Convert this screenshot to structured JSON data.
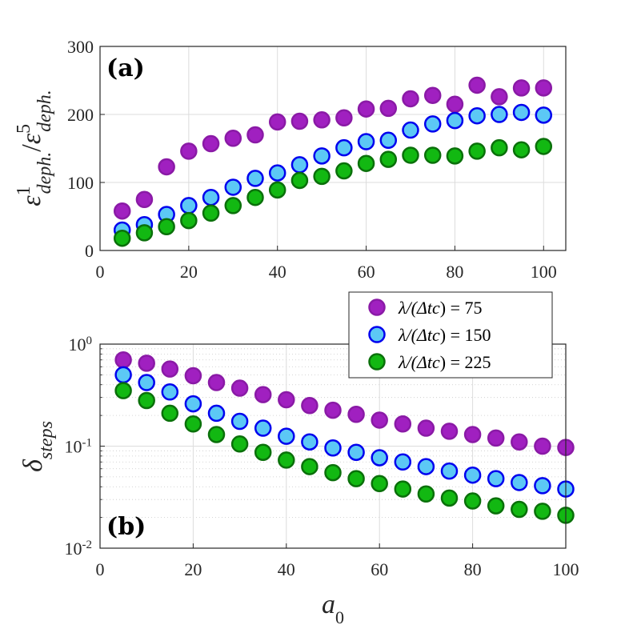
{
  "chart_data": [
    {
      "panel": "(a)",
      "type": "scatter",
      "ylabel_main": "ε",
      "ylabel_sup1": "1",
      "ylabel_sub1": "deph.",
      "ylabel_sep": "/",
      "ylabel_sup2": "5",
      "ylabel_sub2": "deph.",
      "xlim": [
        0,
        105
      ],
      "ylim": [
        0,
        300
      ],
      "xticks": [
        0,
        20,
        40,
        60,
        80,
        100
      ],
      "yticks": [
        0,
        100,
        200,
        300
      ],
      "x": [
        5,
        10,
        15,
        20,
        25,
        30,
        35,
        40,
        45,
        50,
        55,
        60,
        65,
        70,
        75,
        80,
        85,
        90,
        95,
        100
      ],
      "series": [
        {
          "name": "λ/(Δtc) = 75",
          "fill": "#a020c0",
          "edge": "#8a1aa6",
          "values": [
            58,
            75,
            123,
            146,
            157,
            165,
            170,
            189,
            190,
            192,
            195,
            208,
            209,
            223,
            228,
            215,
            243,
            226,
            239,
            239
          ]
        },
        {
          "name": "λ/(Δtc) = 150",
          "fill": "#5cc8f5",
          "edge": "#0000ee",
          "values": [
            30,
            38,
            53,
            66,
            78,
            93,
            106,
            114,
            126,
            139,
            151,
            160,
            162,
            177,
            186,
            191,
            198,
            200,
            203,
            199
          ]
        },
        {
          "name": "λ/(Δtc) = 225",
          "fill": "#12b812",
          "edge": "#0a700a",
          "values": [
            18,
            26,
            35,
            44,
            55,
            66,
            78,
            89,
            103,
            109,
            117,
            128,
            134,
            140,
            140,
            139,
            146,
            151,
            148,
            153
          ]
        }
      ]
    },
    {
      "panel": "(b)",
      "type": "scatter",
      "yscale": "log",
      "ylabel_main": "δ",
      "ylabel_sub": "steps",
      "xlabel_main": "a",
      "xlabel_sub": "0",
      "xlim": [
        0,
        100
      ],
      "ylim": [
        0.01,
        1
      ],
      "xticks": [
        0,
        20,
        40,
        60,
        80,
        100
      ],
      "yticks": [
        {
          "value": 1,
          "base": "10",
          "exp": "0"
        },
        {
          "value": 0.1,
          "base": "10",
          "exp": "-1"
        },
        {
          "value": 0.01,
          "base": "10",
          "exp": "-2"
        }
      ],
      "x": [
        5,
        10,
        15,
        20,
        25,
        30,
        35,
        40,
        45,
        50,
        55,
        60,
        65,
        70,
        75,
        80,
        85,
        90,
        95,
        100
      ],
      "series": [
        {
          "name": "λ/(Δtc) = 75",
          "fill": "#a020c0",
          "edge": "#8a1aa6",
          "values": [
            0.7,
            0.65,
            0.57,
            0.49,
            0.42,
            0.37,
            0.32,
            0.285,
            0.25,
            0.225,
            0.205,
            0.18,
            0.165,
            0.15,
            0.14,
            0.13,
            0.12,
            0.11,
            0.1,
            0.097
          ]
        },
        {
          "name": "λ/(Δtc) = 150",
          "fill": "#5cc8f5",
          "edge": "#0000ee",
          "values": [
            0.5,
            0.42,
            0.34,
            0.26,
            0.21,
            0.175,
            0.15,
            0.125,
            0.11,
            0.096,
            0.087,
            0.077,
            0.07,
            0.063,
            0.057,
            0.052,
            0.048,
            0.044,
            0.041,
            0.038
          ]
        },
        {
          "name": "λ/(Δtc) = 225",
          "fill": "#12b812",
          "edge": "#0a700a",
          "values": [
            0.35,
            0.28,
            0.21,
            0.165,
            0.13,
            0.105,
            0.087,
            0.073,
            0.063,
            0.055,
            0.048,
            0.043,
            0.038,
            0.034,
            0.031,
            0.029,
            0.026,
            0.024,
            0.023,
            0.021
          ]
        }
      ],
      "legend": {
        "placement": "top-right",
        "entries": [
          {
            "prefix": "λ/(Δ",
            "var": "tc",
            "suffix": ") = 75"
          },
          {
            "prefix": "λ/(Δ",
            "var": "tc",
            "suffix": ") = 150"
          },
          {
            "prefix": "λ/(Δ",
            "var": "tc",
            "suffix": ") = 225"
          }
        ]
      }
    }
  ]
}
